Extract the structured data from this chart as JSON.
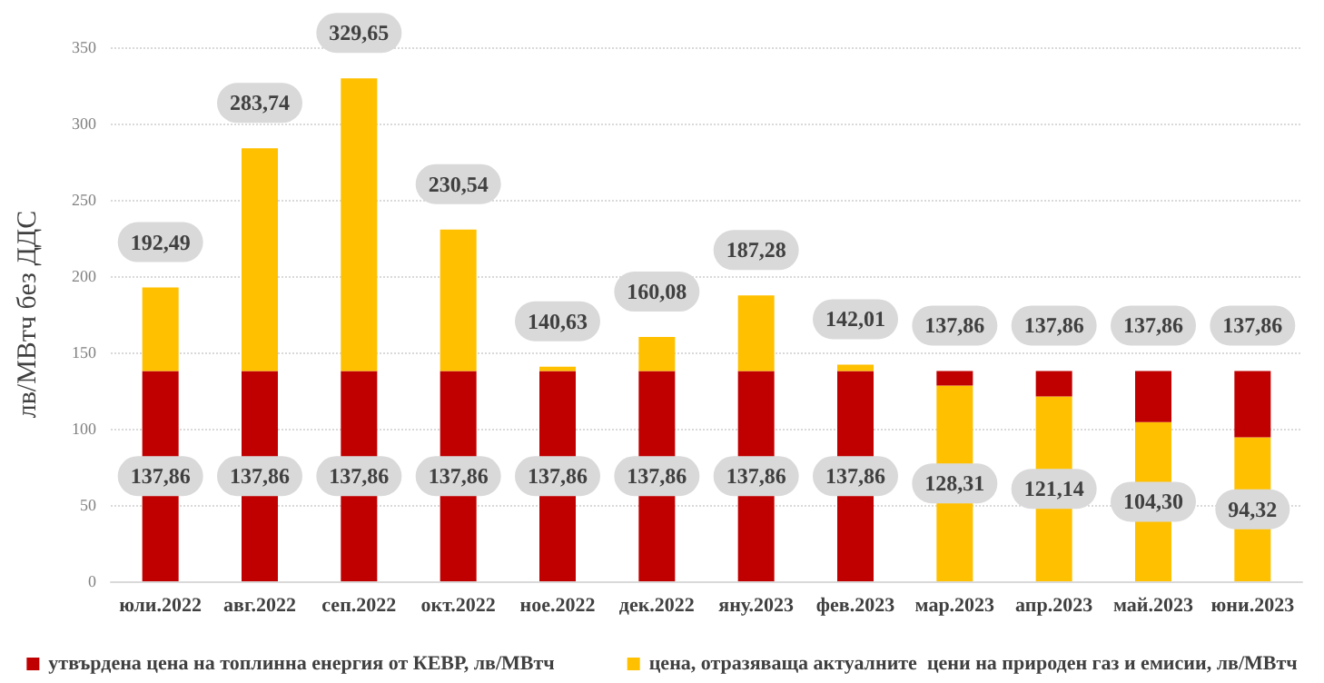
{
  "chart_data": {
    "type": "bar",
    "stacked": true,
    "ylabel": "лв/МВтч без ДДС",
    "categories": [
      "юли.2022",
      "авг.2022",
      "сеп.2022",
      "окт.2022",
      "ное.2022",
      "дек.2022",
      "яну.2023",
      "фев.2023",
      "мар.2023",
      "апр.2023",
      "май.2023",
      "юни.2023"
    ],
    "series": [
      {
        "name": "утвърдена цена на топлинна енергия от КЕВР, лв/МВтч",
        "color": "#c00000",
        "values": [
          137.86,
          137.86,
          137.86,
          137.86,
          137.86,
          137.86,
          137.86,
          137.86,
          null,
          null,
          null,
          null
        ],
        "value_labels": [
          "137,86",
          "137,86",
          "137,86",
          "137,86",
          "137,86",
          "137,86",
          "137,86",
          "137,86",
          null,
          null,
          null,
          null
        ]
      },
      {
        "name": "цена, отразяваща актуалните  цени на природен газ и емисии, лв/МВтч",
        "color": "#ffc000",
        "values": [
          54.63,
          145.88,
          191.79,
          92.68,
          2.77,
          22.22,
          49.42,
          4.15,
          128.31,
          121.14,
          104.3,
          94.32
        ],
        "value_labels": [
          null,
          null,
          null,
          null,
          null,
          null,
          null,
          null,
          "128,31",
          "121,14",
          "104,30",
          "94,32"
        ]
      },
      {
        "color": "#c00000",
        "values": [
          null,
          null,
          null,
          null,
          null,
          null,
          null,
          null,
          9.55,
          16.72,
          33.56,
          43.54
        ]
      }
    ],
    "totals": [
      "192,49",
      "283,74",
      "329,65",
      "230,54",
      "140,63",
      "160,08",
      "187,28",
      "142,01",
      "137,86",
      "137,86",
      "137,86",
      "137,86"
    ],
    "ylim": [
      0,
      350
    ],
    "yticks": [
      0,
      50,
      100,
      150,
      200,
      250,
      300,
      350
    ],
    "grid": "y",
    "legend": "bottom"
  }
}
